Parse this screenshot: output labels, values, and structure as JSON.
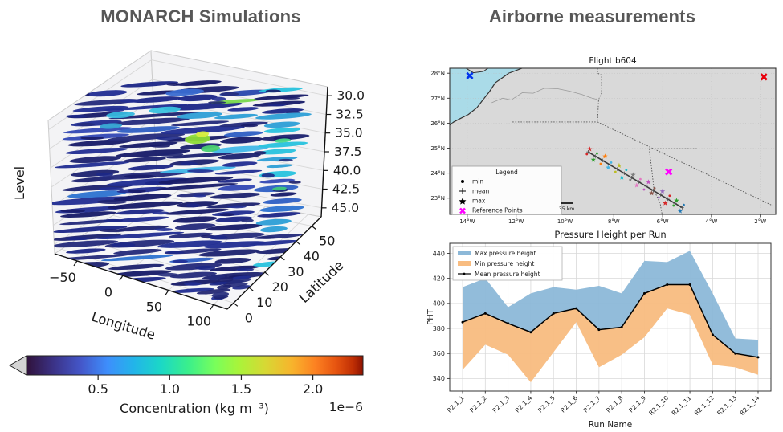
{
  "left_panel": {
    "title": "MONARCH Simulations"
  },
  "right_panel": {
    "title": "Airborne measurements"
  },
  "chart_data": [
    {
      "id": "monarch-3d",
      "type": "scatter",
      "note": "3D volume rendering of concentration slices",
      "xlabel": "Longitude",
      "ylabel": "Latitude",
      "zlabel": "Level",
      "x_ticks": [
        "−50",
        "0",
        "50",
        "100"
      ],
      "y_ticks": [
        "0",
        "10",
        "20",
        "30",
        "40",
        "50"
      ],
      "z_ticks": [
        "30.0",
        "32.5",
        "35.0",
        "37.5",
        "40.0",
        "42.5",
        "45.0"
      ],
      "colorbar": {
        "label": "Concentration (kg m⁻³)",
        "offset": "1e−6",
        "tick_values": [
          0.5,
          1.0,
          1.5,
          2.0
        ],
        "tick_labels": [
          "0.5",
          "1.0",
          "1.5",
          "2.0"
        ],
        "range": [
          0,
          2.35
        ],
        "colormap": "turbo",
        "extend": "min",
        "color_start": "#30123b",
        "color_mid": "#35f394",
        "color_end": "#7a0403"
      }
    },
    {
      "id": "flight-map",
      "type": "scatter",
      "title": "Flight b604",
      "land_color": "#d9d9d9",
      "ocean_color": "#aadbe8",
      "lat_ticks": {
        "labels": [
          "28°N",
          "27°N",
          "26°N",
          "25°N",
          "24°N",
          "23°N"
        ],
        "values": [
          28,
          27,
          26,
          25,
          24,
          23
        ]
      },
      "lon_ticks": {
        "labels": [
          "14°W",
          "12°W",
          "10°W",
          "8°W",
          "6°W",
          "4°W",
          "2°W"
        ],
        "values": [
          -14,
          -12,
          -10,
          -8,
          -6,
          -4,
          -2
        ]
      },
      "legend": {
        "title": "Legend",
        "items": [
          {
            "marker": "dot",
            "label": "min"
          },
          {
            "marker": "plus",
            "label": "mean"
          },
          {
            "marker": "star",
            "label": "max"
          },
          {
            "marker": "cross",
            "label": "Reference Points",
            "color": "#ff00ff"
          }
        ]
      },
      "scale_bar": {
        "label": "35 km"
      },
      "reference_points": [
        {
          "lon": -13.9,
          "lat": 27.9,
          "color": "#0033ee"
        },
        {
          "lon": -1.85,
          "lat": 27.85,
          "color": "#e8000b"
        },
        {
          "lon": -5.75,
          "lat": 24.05,
          "color": "#ff00ff"
        }
      ],
      "track": {
        "start": {
          "lon": -9.05,
          "lat": 24.85
        },
        "end": {
          "lon": -5.2,
          "lat": 22.62
        },
        "run_colors": [
          "#d62728",
          "#2ca02c",
          "#ff7f0e",
          "#45b5e6",
          "#bcbd22",
          "#17becf",
          "#7f7f7f",
          "#e377c2",
          "#c052c0",
          "#8c564b",
          "#9467bd",
          "#d62728",
          "#2ca02c",
          "#1f77b4"
        ]
      }
    },
    {
      "id": "pressure-height",
      "type": "area",
      "title": "Pressure Height per Run",
      "xlabel": "Run Name",
      "ylabel": "PHT",
      "categories": [
        "R2.1_1",
        "R2.1_2",
        "R2.1_3",
        "R2.1_4",
        "R2.1_5",
        "R2.1_6",
        "R2.1_7",
        "R2.1_8",
        "R2.1_9",
        "R2.1_10",
        "R2.1_11",
        "R2.1_12",
        "R2.1_13",
        "R2.1_14"
      ],
      "series": [
        {
          "name": "Max pressure height",
          "color": "#8cb8d8",
          "values": [
            413,
            420,
            397,
            408,
            413,
            411,
            414,
            408,
            434,
            433,
            442,
            408,
            372,
            371
          ]
        },
        {
          "name": "Min pressure height",
          "color": "#f8bc80",
          "values": [
            347,
            367,
            359,
            337,
            361,
            385,
            349,
            359,
            373,
            396,
            391,
            351,
            349,
            343
          ]
        },
        {
          "name": "Mean pressure height",
          "color": "#000000",
          "values": [
            385,
            392,
            384,
            377,
            392,
            396,
            379,
            381,
            408,
            415,
            415,
            375,
            360,
            357
          ]
        }
      ],
      "ylim": [
        330,
        448
      ],
      "yticks": [
        340,
        360,
        380,
        400,
        420,
        440
      ],
      "grid": true,
      "legend_position": "upper left"
    }
  ]
}
